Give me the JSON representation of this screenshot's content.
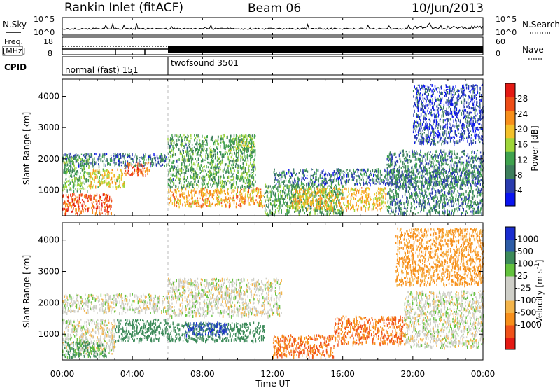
{
  "header": {
    "station": "Rankin Inlet (fitACF)",
    "beam": "Beam 06",
    "date": "10/Jun/2013"
  },
  "panel_labels": {
    "nsky": "N.Sky",
    "freq_line1": "Freq.",
    "freq_line2": "[MHz]",
    "cpid": "CPID",
    "nsearch": "N.Search",
    "nave": "Nave"
  },
  "noise_axis": {
    "left_top": "10^5",
    "left_bottom": "10^0",
    "right_top": "10^5",
    "right_bottom": "10^0"
  },
  "freq_axis": {
    "left_top": "18",
    "left_bottom": "8",
    "right_top": "60",
    "right_bottom": "0"
  },
  "cpid_segments": [
    {
      "label": "normal (fast) 151",
      "start_hour": 0,
      "end_hour": 6.1
    },
    {
      "label": "twofsound 3501",
      "start_hour": 6.1,
      "end_hour": 24
    }
  ],
  "x_axis": {
    "label": "Time UT",
    "ticks": [
      "00:00",
      "04:00",
      "08:00",
      "12:00",
      "16:00",
      "20:00",
      "00:00"
    ],
    "tick_hours": [
      0,
      4,
      8,
      12,
      16,
      20,
      24
    ]
  },
  "colors": {
    "power": [
      "#0a14f0",
      "#2a3cae",
      "#3d7e5c",
      "#3fa24e",
      "#9fd63a",
      "#f3c12a",
      "#f78f1b",
      "#ee4d17",
      "#e41a14"
    ],
    "velocity": [
      "#e41a14",
      "#f0521a",
      "#f78f1b",
      "#f3b44a",
      "#cfcfc8",
      "#cfcfc8",
      "#64c23e",
      "#3d8b5a",
      "#2d5ca6",
      "#1a2dd0"
    ]
  },
  "chart_data": [
    {
      "type": "heatmap",
      "panel": "power",
      "xlabel": "",
      "ylabel": "Slant Range [km]",
      "xlim_hours": [
        0,
        24
      ],
      "ylim": [
        180,
        4550
      ],
      "yticks": [
        1000,
        2000,
        3000,
        4000
      ],
      "colorbar": {
        "label": "Power [dB]",
        "range": [
          0,
          32
        ],
        "ticks": [
          4,
          8,
          12,
          16,
          20,
          24,
          28
        ]
      },
      "scatter_regions": [
        {
          "t0": 0.0,
          "t1": 2.8,
          "r0": 250,
          "r1": 900,
          "value": 27
        },
        {
          "t0": 0.0,
          "t1": 6.0,
          "r0": 1800,
          "r1": 2200,
          "value": 8
        },
        {
          "t0": 0.0,
          "t1": 1.5,
          "r0": 1000,
          "r1": 2100,
          "value": 13
        },
        {
          "t0": 1.5,
          "t1": 3.5,
          "r0": 1100,
          "r1": 1700,
          "value": 18
        },
        {
          "t0": 3.5,
          "t1": 5.0,
          "r0": 1500,
          "r1": 1900,
          "value": 25
        },
        {
          "t0": 6.0,
          "t1": 11.5,
          "r0": 500,
          "r1": 1100,
          "value": 22
        },
        {
          "t0": 6.0,
          "t1": 11.0,
          "r0": 1100,
          "r1": 2800,
          "value": 12
        },
        {
          "t0": 9.5,
          "t1": 11.0,
          "r0": 2200,
          "r1": 2800,
          "value": 14
        },
        {
          "t0": 11.5,
          "t1": 16.0,
          "r0": 250,
          "r1": 1200,
          "value": 12
        },
        {
          "t0": 13.0,
          "t1": 18.5,
          "r0": 400,
          "r1": 1100,
          "value": 20
        },
        {
          "t0": 12.0,
          "t1": 24.0,
          "r0": 1200,
          "r1": 1700,
          "value": 8
        },
        {
          "t0": 18.5,
          "t1": 24.0,
          "r0": 250,
          "r1": 2300,
          "value": 9
        },
        {
          "t0": 20.0,
          "t1": 24.0,
          "r0": 2500,
          "r1": 4400,
          "value": 5
        }
      ]
    },
    {
      "type": "heatmap",
      "panel": "velocity",
      "xlabel": "Time UT",
      "ylabel": "Slant Range [km]",
      "xlim_hours": [
        0,
        24
      ],
      "ylim": [
        180,
        4550
      ],
      "yticks": [
        1000,
        2000,
        3000,
        4000
      ],
      "colorbar": {
        "label": "Velocity [m s^-1]",
        "ticks": [
          "1000",
          "500",
          "100",
          "25",
          "-25",
          "-100",
          "-500",
          "-1000"
        ]
      },
      "scatter_regions": [
        {
          "t0": 0.0,
          "t1": 6.0,
          "r0": 1700,
          "r1": 2300,
          "value": 0
        },
        {
          "t0": 6.0,
          "t1": 12.5,
          "r0": 1600,
          "r1": 2800,
          "value": 0
        },
        {
          "t0": 0.0,
          "t1": 3.0,
          "r0": 400,
          "r1": 1500,
          "value": 0
        },
        {
          "t0": 3.0,
          "t1": 6.0,
          "r0": 800,
          "r1": 1500,
          "value": 150
        },
        {
          "t0": 6.0,
          "t1": 11.5,
          "r0": 800,
          "r1": 1400,
          "value": 200
        },
        {
          "t0": 7.0,
          "t1": 9.5,
          "r0": 1000,
          "r1": 1400,
          "value": 700
        },
        {
          "t0": 12.0,
          "t1": 15.5,
          "r0": 300,
          "r1": 1000,
          "value": -300
        },
        {
          "t0": 15.5,
          "t1": 19.5,
          "r0": 700,
          "r1": 1600,
          "value": -300
        },
        {
          "t0": 19.5,
          "t1": 24.0,
          "r0": 600,
          "r1": 2400,
          "value": 0
        },
        {
          "t0": 0.0,
          "t1": 2.5,
          "r0": 300,
          "r1": 800,
          "value": 80
        },
        {
          "t0": 19.0,
          "t1": 24.0,
          "r0": 2600,
          "r1": 4400,
          "value": -80
        }
      ]
    }
  ]
}
